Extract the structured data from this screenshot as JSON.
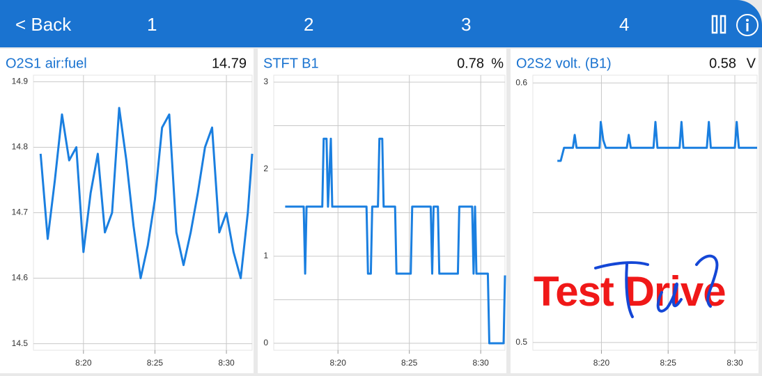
{
  "header": {
    "back": "< Back",
    "tabs": [
      "1",
      "2",
      "3",
      "4"
    ]
  },
  "watermark": "Test Drive",
  "chart_data": [
    {
      "type": "line",
      "title": "O2S1 air:fuel",
      "current_value": "14.79",
      "xlim": [
        496.5,
        511.8
      ],
      "xticks": [
        {
          "value": 500,
          "label": "8:20"
        },
        {
          "value": 505,
          "label": "8:25"
        },
        {
          "value": 510,
          "label": "8:30"
        }
      ],
      "ylim": [
        14.49,
        14.91
      ],
      "yticks": [
        14.5,
        14.6,
        14.7,
        14.8,
        14.9
      ],
      "grid": true,
      "x": [
        497,
        497.5,
        498,
        498.5,
        499,
        499.5,
        500,
        500.5,
        501,
        501.5,
        502,
        502.5,
        503,
        503.5,
        504,
        504.5,
        505,
        505.5,
        506,
        506.5,
        507,
        507.5,
        508,
        508.5,
        509,
        509.5,
        510,
        510.5,
        511,
        511.5,
        511.8
      ],
      "series": [
        {
          "name": "O2S1 air:fuel",
          "color": "#1a7fe0",
          "values": [
            14.79,
            14.66,
            14.75,
            14.85,
            14.78,
            14.8,
            14.64,
            14.73,
            14.79,
            14.67,
            14.7,
            14.86,
            14.78,
            14.68,
            14.6,
            14.65,
            14.72,
            14.83,
            14.85,
            14.67,
            14.62,
            14.67,
            14.73,
            14.8,
            14.83,
            14.67,
            14.7,
            14.64,
            14.6,
            14.7,
            14.79
          ]
        }
      ]
    },
    {
      "type": "line",
      "title": "STFT B1",
      "current_value": "0.78",
      "unit": "%",
      "xlim": [
        495.5,
        511.7
      ],
      "xticks": [
        {
          "value": 500,
          "label": "8:20"
        },
        {
          "value": 505,
          "label": "8:25"
        },
        {
          "value": 510,
          "label": "8:30"
        }
      ],
      "ylim": [
        -0.08,
        3.08
      ],
      "yticks": [
        0,
        1,
        2,
        3
      ],
      "minor_yticks": [
        0.5,
        1.5,
        2.5
      ],
      "grid": true,
      "x": [
        496.3,
        497.6,
        497.7,
        497.8,
        498.9,
        499.0,
        499.2,
        499.3,
        499.5,
        499.6,
        502.0,
        502.1,
        502.3,
        502.4,
        502.8,
        502.9,
        503.1,
        503.2,
        504.0,
        504.1,
        505.1,
        505.2,
        506.5,
        506.6,
        506.7,
        507.0,
        507.1,
        508.4,
        508.5,
        509.4,
        509.5,
        509.6,
        509.7,
        510.5,
        510.6,
        511.6,
        511.7
      ],
      "series": [
        {
          "name": "STFT B1",
          "color": "#1a7fe0",
          "values": [
            1.57,
            1.57,
            0.8,
            1.57,
            1.57,
            2.35,
            2.35,
            1.57,
            2.35,
            1.57,
            1.57,
            0.8,
            0.8,
            1.57,
            1.57,
            2.35,
            2.35,
            1.57,
            1.57,
            0.8,
            0.8,
            1.57,
            1.57,
            0.8,
            1.57,
            1.57,
            0.8,
            0.8,
            1.57,
            1.57,
            0.8,
            1.57,
            0.8,
            0.8,
            0,
            0,
            0.78
          ]
        }
      ]
    },
    {
      "type": "line",
      "title": "O2S2 volt. (B1)",
      "current_value": "0.58",
      "unit": "V",
      "xlim": [
        494.86,
        511.67
      ],
      "xticks": [
        {
          "value": 500,
          "label": "8:20"
        },
        {
          "value": 505,
          "label": "8:25"
        },
        {
          "value": 510,
          "label": "8:30"
        }
      ],
      "ylim": [
        0.497,
        0.603
      ],
      "yticks": [
        0.5,
        0.6
      ],
      "minor_yticks": [
        0.55
      ],
      "grid": true,
      "x": [
        496.7,
        496.95,
        497.2,
        497.86,
        498.0,
        498.14,
        499.86,
        499.95,
        500.14,
        500.33,
        501.9,
        502.05,
        502.2,
        503.9,
        504.05,
        504.2,
        505.86,
        506.0,
        506.14,
        507.9,
        508.05,
        508.2,
        510.0,
        510.14,
        510.3,
        511.67
      ],
      "series": [
        {
          "name": "O2S2 volt. (B1)",
          "color": "#1a7fe0",
          "values": [
            0.57,
            0.57,
            0.575,
            0.575,
            0.58,
            0.575,
            0.575,
            0.585,
            0.578,
            0.575,
            0.575,
            0.58,
            0.575,
            0.575,
            0.585,
            0.575,
            0.575,
            0.585,
            0.575,
            0.575,
            0.585,
            0.575,
            0.575,
            0.585,
            0.575,
            0.575
          ]
        }
      ]
    }
  ]
}
